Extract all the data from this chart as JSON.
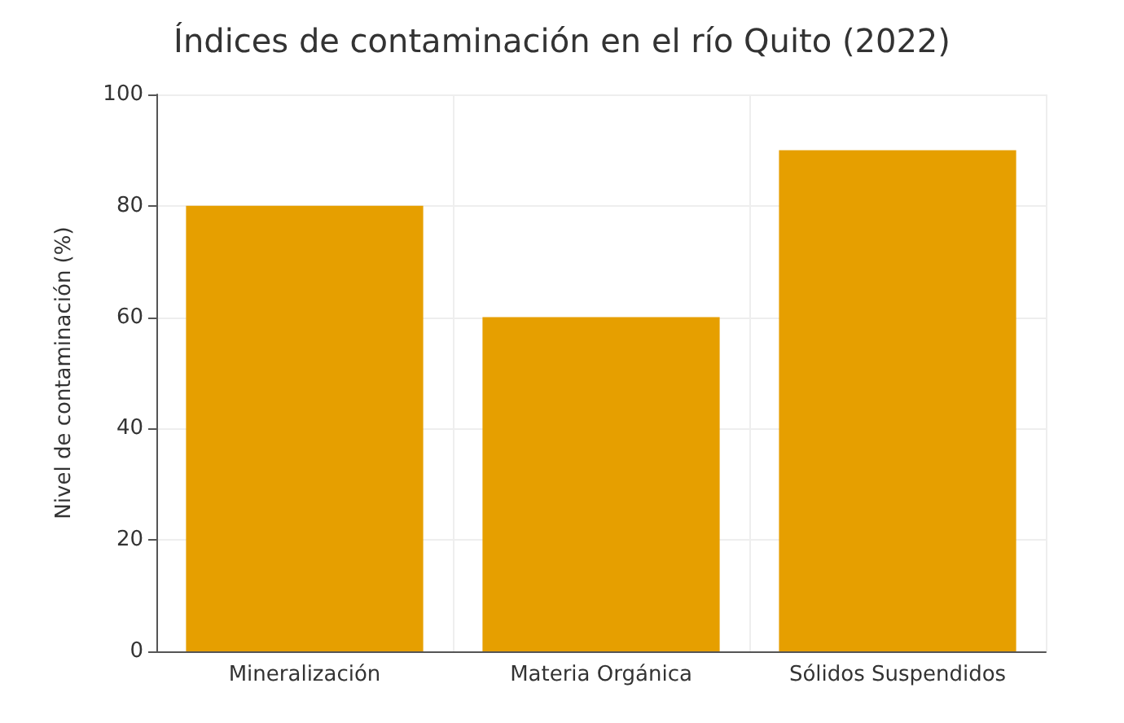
{
  "chart_data": {
    "type": "bar",
    "title": "Índices de contaminación en el río Quito (2022)",
    "ylabel": "Nivel de contaminación (%)",
    "categories": [
      "Mineralización",
      "Materia Orgánica",
      "Sólidos Suspendidos"
    ],
    "values": [
      80,
      60,
      90
    ],
    "color": "#e69f00",
    "ylim": [
      0,
      100
    ],
    "yticks": [
      0,
      20,
      40,
      60,
      80,
      100
    ],
    "grid": true
  }
}
